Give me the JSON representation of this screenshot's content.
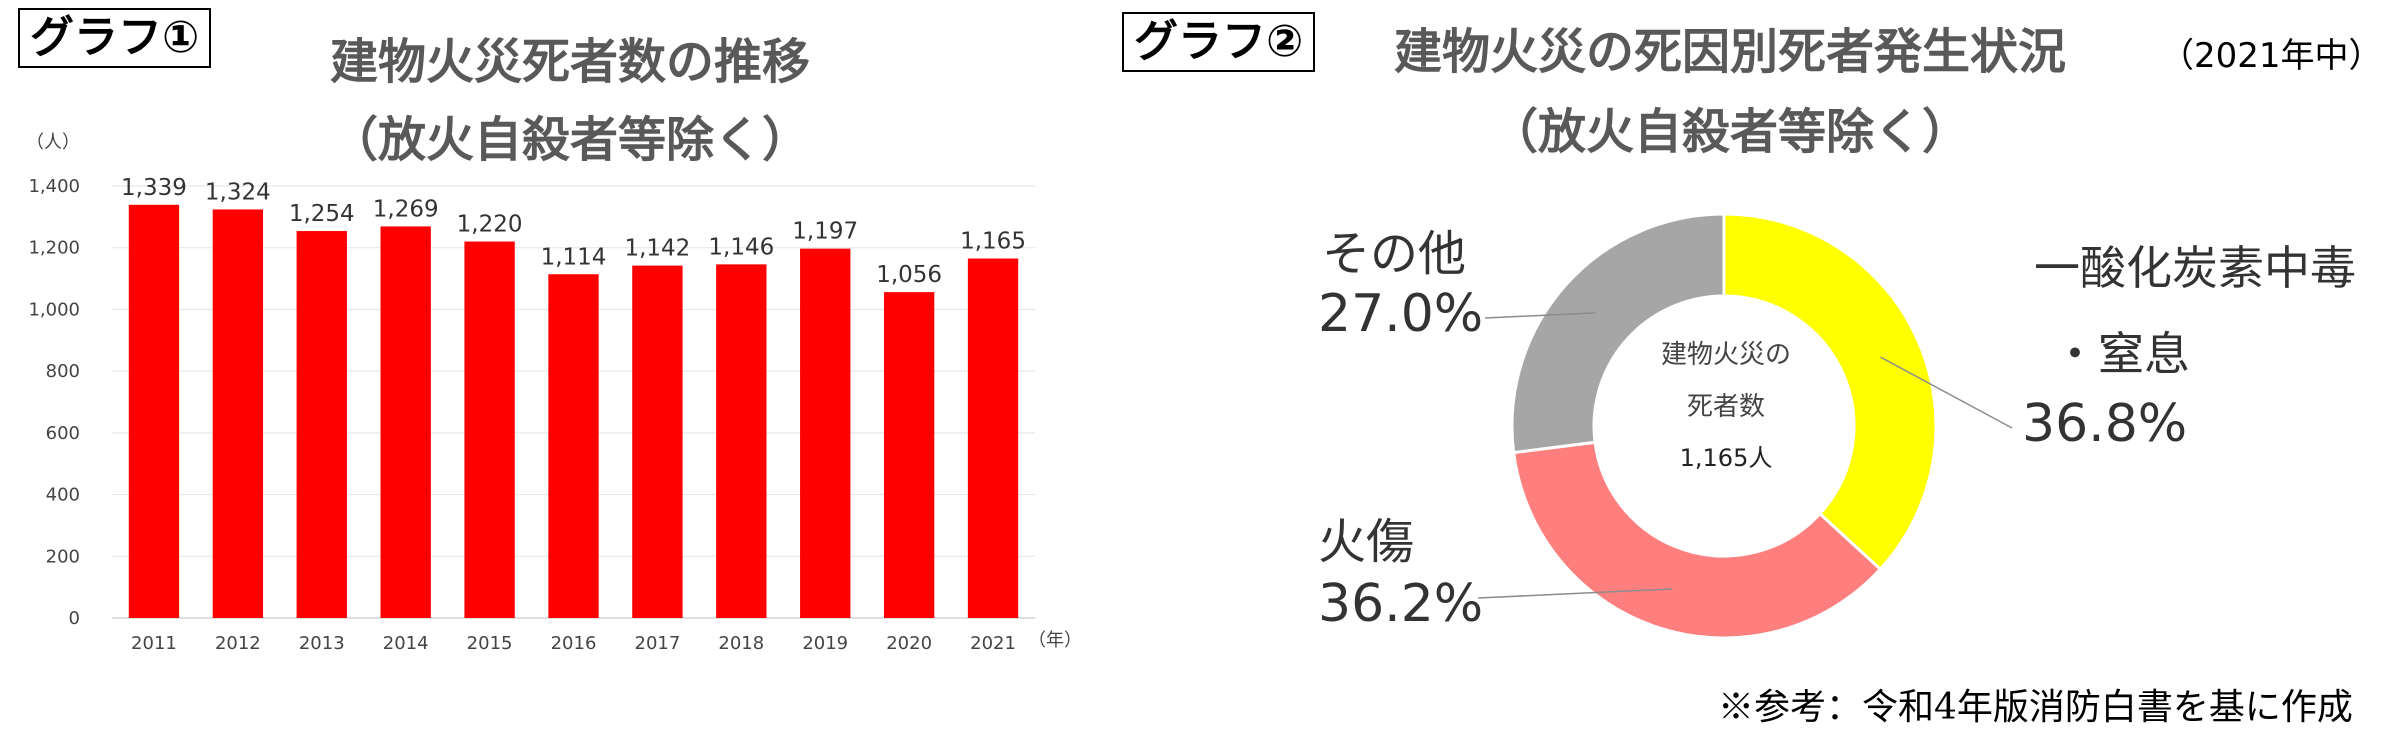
{
  "chart1": {
    "tag": "グラフ①",
    "title_line1": "建物火災死者数の推移",
    "title_line2": "（放火自殺者等除く）"
  },
  "chart2": {
    "tag": "グラフ②",
    "title_line1": "建物火災の死因別死者発生状況",
    "title_line2": "（放火自殺者等除く）",
    "year_note": "（2021年中）",
    "center_line1": "建物火災の",
    "center_line2": "死者数",
    "center_line3": "1,165人",
    "label_co_line1": "一酸化炭素中毒",
    "label_co_line2": "・窒息",
    "label_co_pct": "36.8%",
    "label_burn": "火傷",
    "label_burn_pct": "36.2%",
    "label_other": "その他",
    "label_other_pct": "27.0%"
  },
  "footnote": "※参考：令和4年版消防白書を基に作成",
  "colors": {
    "bar": "#ff0000",
    "co": "#ffff00",
    "burn": "#ff7f7f",
    "other": "#a6a6a6"
  },
  "chart_data": [
    {
      "type": "bar",
      "categories": [
        "2011",
        "2012",
        "2013",
        "2014",
        "2015",
        "2016",
        "2017",
        "2018",
        "2019",
        "2020",
        "2021"
      ],
      "values": [
        1339,
        1324,
        1254,
        1269,
        1220,
        1114,
        1142,
        1146,
        1197,
        1056,
        1165
      ],
      "value_labels": [
        "1,339",
        "1,324",
        "1,254",
        "1,269",
        "1,220",
        "1,114",
        "1,142",
        "1,146",
        "1,197",
        "1,056",
        "1,165"
      ],
      "ylabel": "（人）",
      "xlabel": "（年）",
      "ylim": [
        0,
        1400
      ],
      "yticks": [
        0,
        200,
        400,
        600,
        800,
        1000,
        1200,
        1400
      ],
      "ytick_labels": [
        "0",
        "200",
        "400",
        "600",
        "800",
        "1,000",
        "1,200",
        "1,400"
      ],
      "grid": true
    },
    {
      "type": "pie",
      "donut": true,
      "categories": [
        "一酸化炭素中毒・窒息",
        "火傷",
        "その他"
      ],
      "values": [
        36.8,
        36.2,
        27.0
      ]
    }
  ]
}
